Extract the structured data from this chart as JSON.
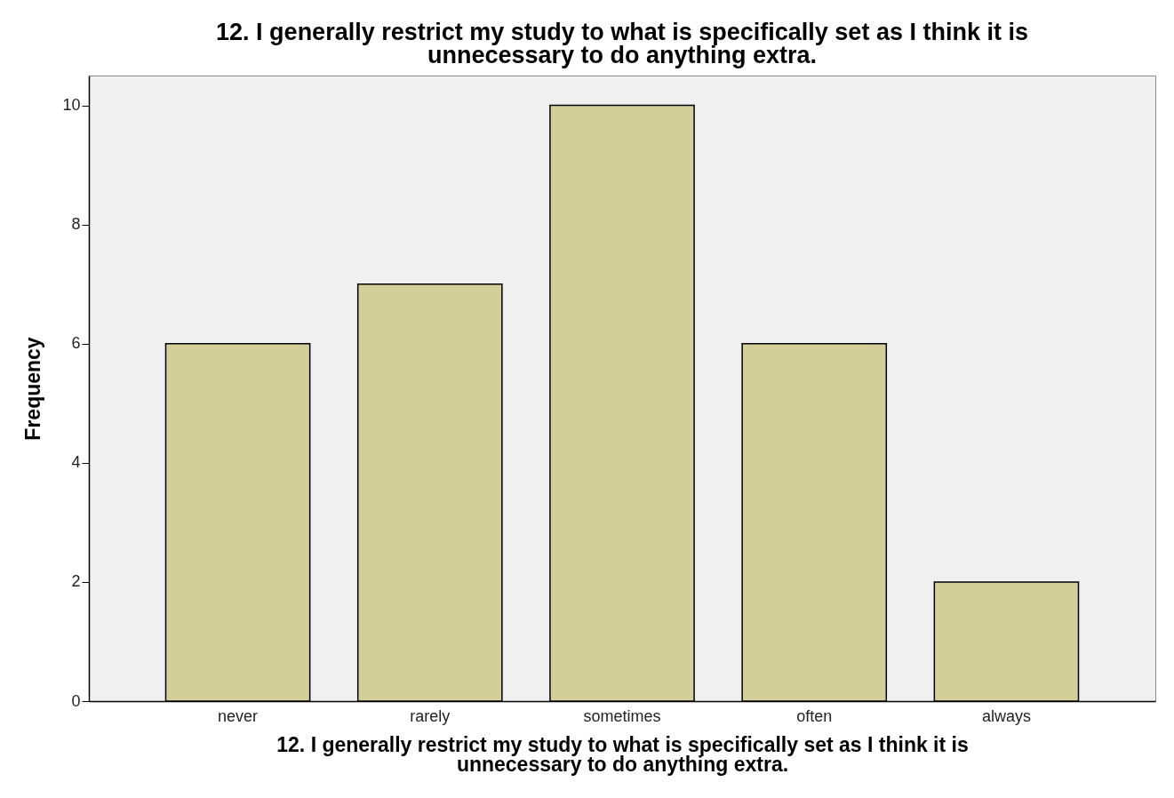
{
  "chart_data": {
    "type": "bar",
    "title": "12. I generally restrict my study to what is specifically set as I think it is\nunnecessary to do anything extra.",
    "xlabel": "12. I generally restrict my study to what is specifically set as I think it is\nunnecessary to do anything extra.",
    "ylabel": "Frequency",
    "categories": [
      "never",
      "rarely",
      "sometimes",
      "often",
      "always"
    ],
    "values": [
      6,
      7,
      10,
      6,
      2
    ],
    "color": "#d3cf98",
    "ylim": [
      0,
      10.5
    ],
    "yticks": [
      0,
      2,
      4,
      6,
      8,
      10
    ],
    "grid": false
  }
}
